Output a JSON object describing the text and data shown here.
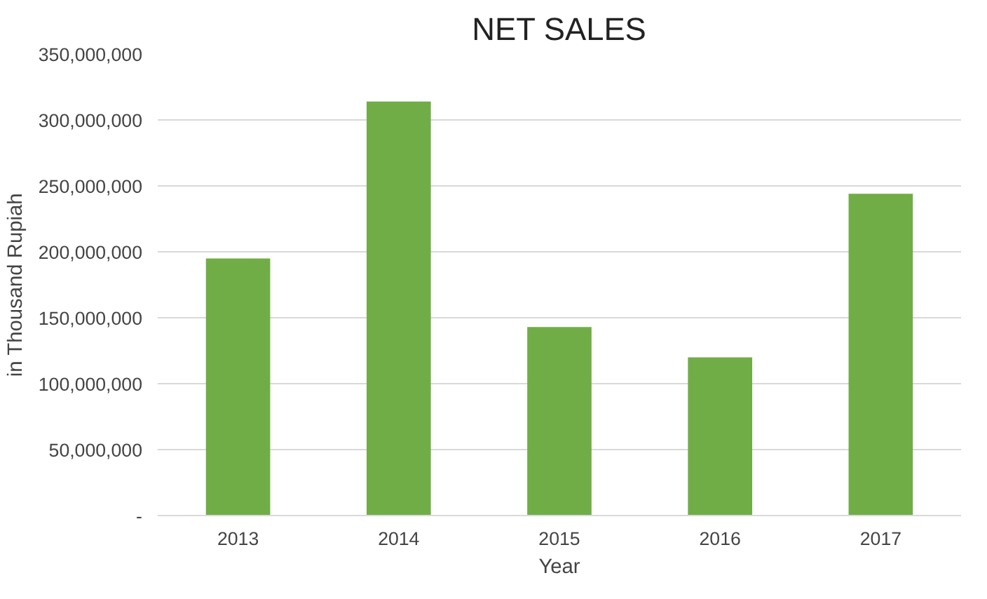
{
  "chart_data": {
    "type": "bar",
    "title": "NET SALES",
    "xlabel": "Year",
    "ylabel": "in Thousand Rupiah",
    "categories": [
      "2013",
      "2014",
      "2015",
      "2016",
      "2017"
    ],
    "values": [
      195000000,
      314000000,
      143000000,
      120000000,
      244000000
    ],
    "color": "#70ad47",
    "ylim": [
      0,
      350000000
    ],
    "yticks": [
      {
        "value": 0,
        "label": "-"
      },
      {
        "value": 50000000,
        "label": "50,000,000"
      },
      {
        "value": 100000000,
        "label": "100,000,000"
      },
      {
        "value": 150000000,
        "label": "150,000,000"
      },
      {
        "value": 200000000,
        "label": "200,000,000"
      },
      {
        "value": 250000000,
        "label": "250,000,000"
      },
      {
        "value": 300000000,
        "label": "300,000,000"
      },
      {
        "value": 350000000,
        "label": "350,000,000"
      }
    ],
    "grid": "y"
  }
}
